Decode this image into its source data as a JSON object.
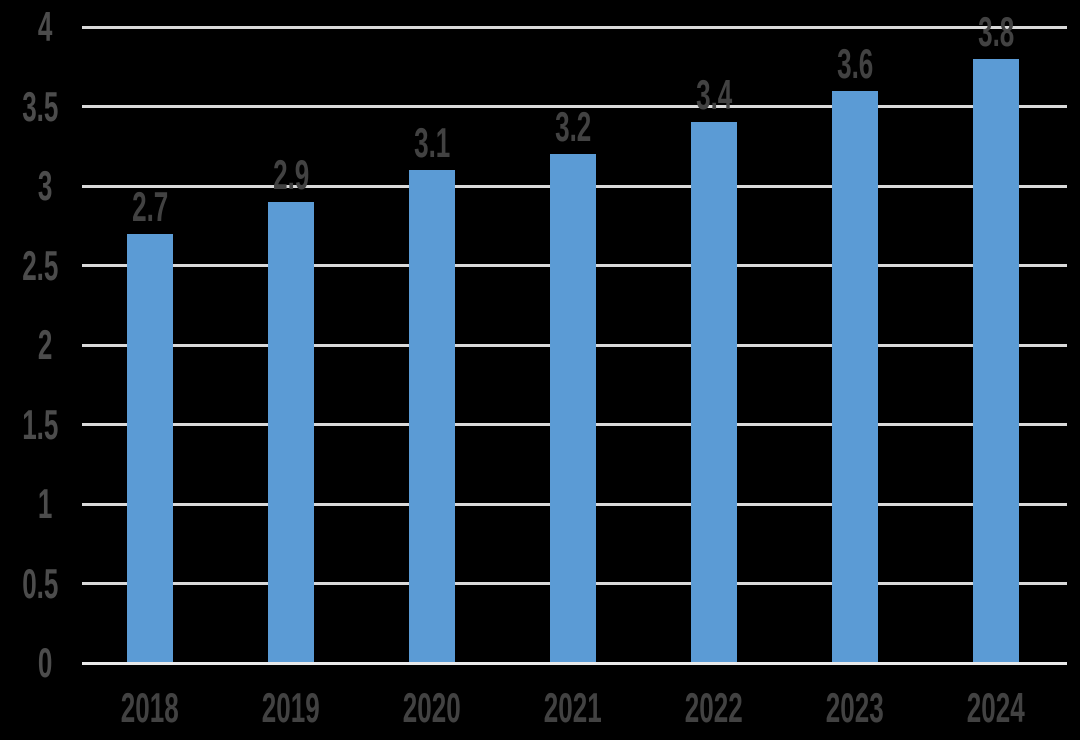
{
  "chart_data": {
    "type": "bar",
    "title": "",
    "xlabel": "",
    "ylabel": "",
    "categories": [
      "2018",
      "2019",
      "2020",
      "2021",
      "2022",
      "2023",
      "2024"
    ],
    "values": [
      2.7,
      2.9,
      3.1,
      3.2,
      3.4,
      3.6,
      3.8
    ],
    "data_labels": [
      "2.7",
      "2.9",
      "3.1",
      "3.2",
      "3.4",
      "3.6",
      "3.8"
    ],
    "ylim": [
      0,
      4
    ],
    "ytick_step": 0.5,
    "ytick_labels": [
      "0",
      "0.5",
      "1",
      "1.5",
      "2",
      "2.5",
      "3",
      "3.5",
      "4"
    ],
    "grid": true,
    "legend": "none",
    "colors": {
      "background": "#000000",
      "bar": "#5b9bd5",
      "gridline": "#d9d9d9",
      "axis_baseline": "#e9e9e9",
      "ytick_label": "#4c4c4c",
      "xtick_label": "#424242",
      "data_label": "#424242"
    }
  }
}
